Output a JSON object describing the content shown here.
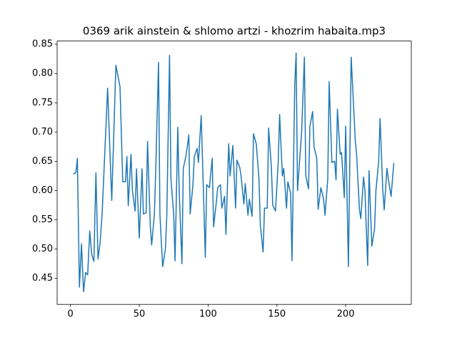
{
  "chart_data": {
    "type": "line",
    "title": "0369 arik ainstein & shlomo artzi - khozrim habaita.mp3",
    "color": "#1f77b4",
    "x": [
      2,
      4,
      5,
      6.5,
      8,
      9.5,
      11,
      12.5,
      14,
      15.5,
      17,
      18.5,
      20,
      21.5,
      23,
      27,
      30,
      33,
      35,
      36,
      38,
      40,
      41,
      42,
      44,
      45,
      47,
      48,
      50,
      52,
      53,
      55,
      56,
      58,
      59,
      61,
      62,
      64,
      65,
      67,
      69,
      70,
      72,
      73,
      75,
      76,
      78,
      79,
      81,
      82,
      84,
      86,
      87,
      89,
      90,
      92,
      93,
      95,
      96,
      98,
      99,
      101,
      103,
      104,
      106,
      107,
      109,
      110,
      112,
      113,
      115,
      116,
      118,
      120,
      121,
      123,
      124,
      126,
      127,
      129,
      130,
      132,
      133,
      135,
      137,
      138,
      140,
      141,
      143,
      144,
      146,
      147,
      149,
      151,
      152,
      154,
      155,
      157,
      158,
      160,
      161,
      163,
      164,
      165,
      168,
      170,
      171,
      173,
      174,
      176,
      177,
      179,
      180,
      182,
      184,
      185,
      187,
      188,
      190,
      192,
      193,
      194,
      196,
      197,
      199,
      200,
      202,
      204,
      205,
      207,
      208,
      210,
      211,
      213,
      214,
      216,
      217,
      219,
      221,
      222,
      224,
      225,
      227,
      228,
      230,
      231,
      233,
      235
    ],
    "values": [
      0.628,
      0.631,
      0.655,
      0.435,
      0.509,
      0.427,
      0.46,
      0.456,
      0.531,
      0.49,
      0.479,
      0.63,
      0.483,
      0.51,
      0.56,
      0.775,
      0.583,
      0.814,
      0.79,
      0.777,
      0.615,
      0.615,
      0.658,
      0.574,
      0.662,
      0.6,
      0.565,
      0.637,
      0.519,
      0.637,
      0.56,
      0.562,
      0.684,
      0.54,
      0.507,
      0.56,
      0.638,
      0.819,
      0.56,
      0.47,
      0.5,
      0.557,
      0.831,
      0.62,
      0.56,
      0.48,
      0.708,
      0.6,
      0.475,
      0.638,
      0.66,
      0.695,
      0.56,
      0.61,
      0.658,
      0.672,
      0.648,
      0.728,
      0.65,
      0.486,
      0.61,
      0.605,
      0.655,
      0.538,
      0.58,
      0.605,
      0.61,
      0.57,
      0.59,
      0.525,
      0.68,
      0.625,
      0.677,
      0.57,
      0.652,
      0.64,
      0.625,
      0.577,
      0.612,
      0.558,
      0.585,
      0.556,
      0.697,
      0.68,
      0.62,
      0.54,
      0.495,
      0.57,
      0.57,
      0.707,
      0.64,
      0.575,
      0.565,
      0.65,
      0.73,
      0.625,
      0.638,
      0.57,
      0.615,
      0.595,
      0.48,
      0.78,
      0.835,
      0.6,
      0.7,
      0.828,
      0.625,
      0.603,
      0.71,
      0.735,
      0.675,
      0.655,
      0.568,
      0.605,
      0.585,
      0.558,
      0.62,
      0.786,
      0.648,
      0.65,
      0.618,
      0.739,
      0.662,
      0.665,
      0.588,
      0.71,
      0.47,
      0.828,
      0.78,
      0.685,
      0.66,
      0.568,
      0.552,
      0.623,
      0.6,
      0.472,
      0.634,
      0.505,
      0.535,
      0.6,
      0.65,
      0.723,
      0.6,
      0.567,
      0.638,
      0.62,
      0.59,
      0.647
    ],
    "xlim": [
      -9.7,
      247.7
    ],
    "ylim": [
      0.4055,
      0.8555
    ],
    "xticks": [
      0,
      50,
      100,
      150,
      200
    ],
    "yticks": [
      0.45,
      {
        "value": 0.5,
        "label": "0.50"
      },
      0.55,
      {
        "value": 0.6,
        "label": "0.60"
      },
      0.65,
      {
        "value": 0.7,
        "label": "0.70"
      },
      0.75,
      {
        "value": 0.8,
        "label": "0.80"
      },
      0.85
    ]
  }
}
